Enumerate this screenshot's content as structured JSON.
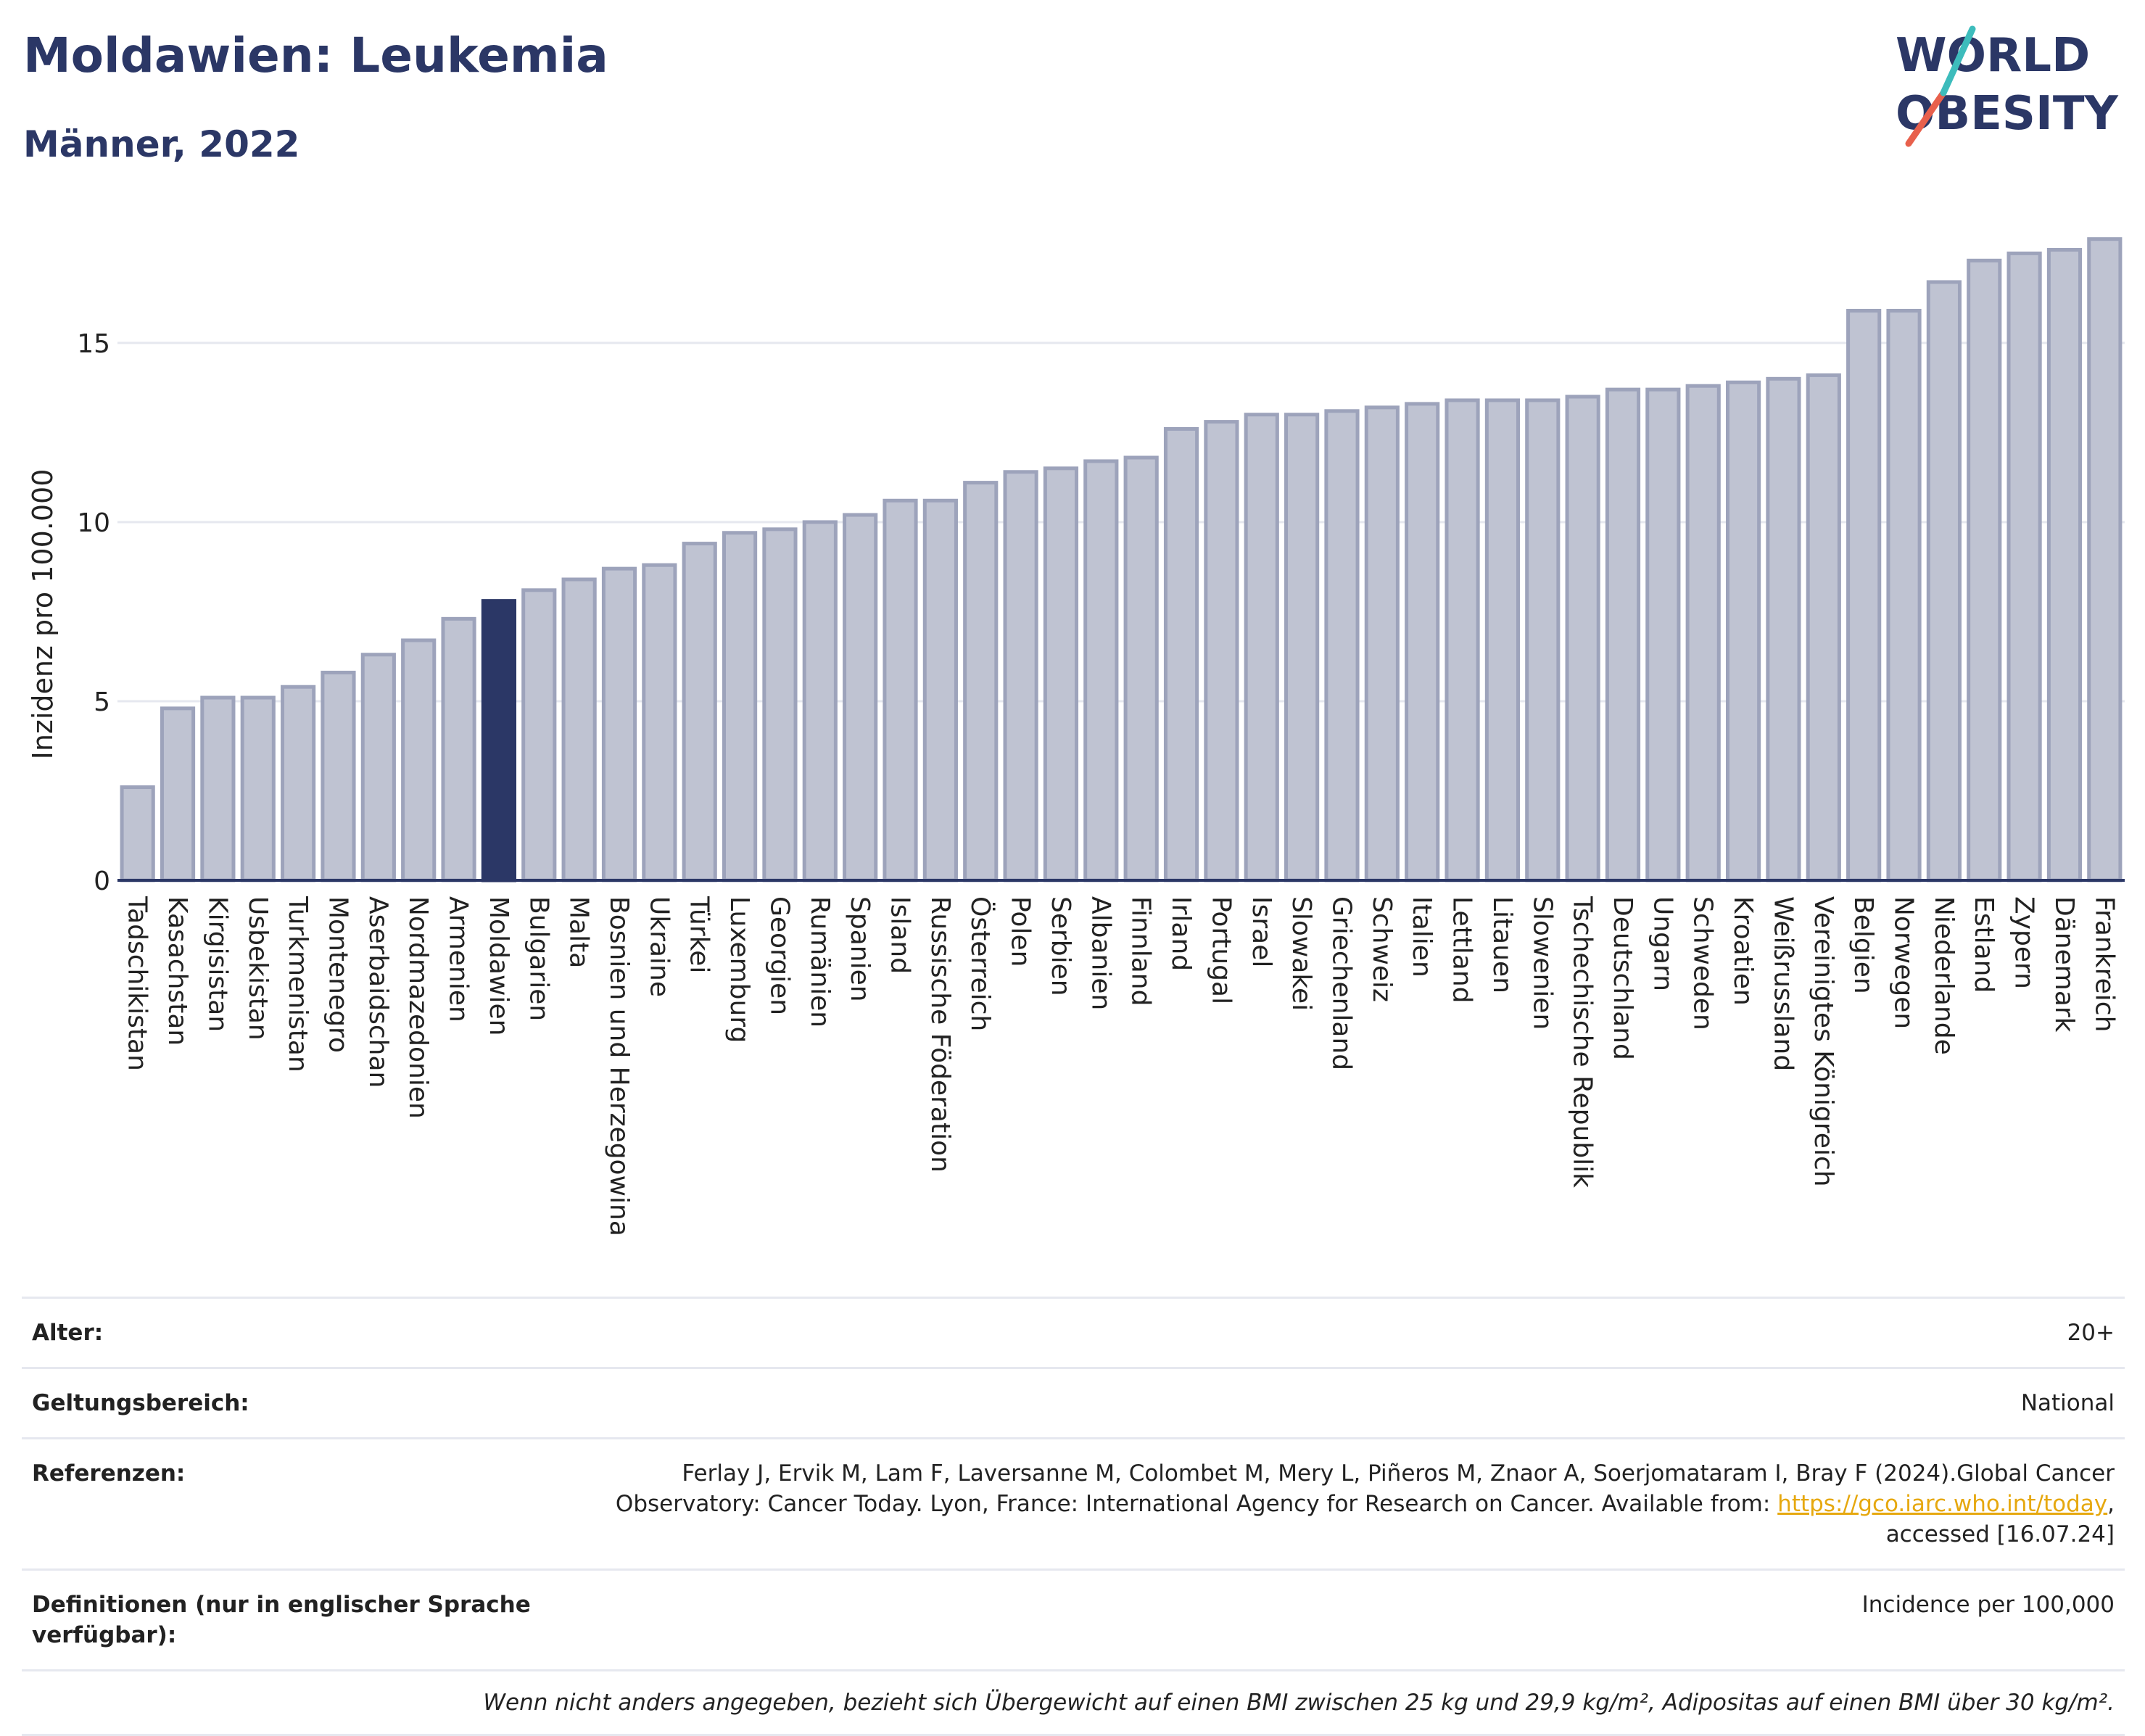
{
  "header": {
    "title": "Moldawien: Leukemia",
    "subtitle": "Männer, 2022"
  },
  "logo": {
    "line1": "WORLD",
    "line2": "OBESITY",
    "text_color": "#2b3766",
    "slash_colors": [
      "#e8604c",
      "#3dbcbc"
    ]
  },
  "colors": {
    "bar_default": "#bfc3d2",
    "bar_default_stroke": "#9da3bb",
    "bar_highlight": "#2b3766",
    "grid": "#e6e8ef",
    "axis": "#2b3766"
  },
  "chart_data": {
    "type": "bar",
    "ylabel": "Inzidenz pro 100.000",
    "ylim": [
      0,
      18.5
    ],
    "yticks": [
      0,
      5,
      10,
      15
    ],
    "highlight": "Moldawien",
    "categories": [
      "Tadschikistan",
      "Kasachstan",
      "Kirgisistan",
      "Usbekistan",
      "Turkmenistan",
      "Montenegro",
      "Aserbaidschan",
      "Nordmazedonien",
      "Armenien",
      "Moldawien",
      "Bulgarien",
      "Malta",
      "Bosnien und Herzegowina",
      "Ukraine",
      "Türkei",
      "Luxemburg",
      "Georgien",
      "Rumänien",
      "Spanien",
      "Island",
      "Russische Föderation",
      "Österreich",
      "Polen",
      "Serbien",
      "Albanien",
      "Finnland",
      "Irland",
      "Portugal",
      "Israel",
      "Slowakei",
      "Griechenland",
      "Schweiz",
      "Italien",
      "Lettland",
      "Litauen",
      "Slowenien",
      "Tschechische Republik",
      "Deutschland",
      "Ungarn",
      "Schweden",
      "Kroatien",
      "Weißrussland",
      "Vereinigtes Königreich",
      "Belgien",
      "Norwegen",
      "Niederlande",
      "Estland",
      "Zypern",
      "Dänemark",
      "Frankreich"
    ],
    "values": [
      2.6,
      4.8,
      5.1,
      5.1,
      5.4,
      5.8,
      6.3,
      6.7,
      7.3,
      7.8,
      8.1,
      8.4,
      8.7,
      8.8,
      9.4,
      9.7,
      9.8,
      10.0,
      10.2,
      10.6,
      10.6,
      11.1,
      11.4,
      11.5,
      11.7,
      11.8,
      12.6,
      12.8,
      13.0,
      13.0,
      13.1,
      13.2,
      13.3,
      13.4,
      13.4,
      13.4,
      13.5,
      13.7,
      13.7,
      13.8,
      13.9,
      14.0,
      14.1,
      15.9,
      15.9,
      16.7,
      17.3,
      17.5,
      17.6,
      17.9
    ]
  },
  "info": {
    "rows": [
      {
        "label": "Alter:",
        "value": "20+"
      },
      {
        "label": "Geltungsbereich:",
        "value": "National"
      },
      {
        "label": "Referenzen:",
        "value_before": "Ferlay J, Ervik M, Lam F, Laversanne M, Colombet M, Mery L, Piñeros M, Znaor A, Soerjomataram I, Bray F (2024).Global Cancer Observatory: Cancer Today. Lyon, France: International Agency for Research on Cancer. Available from: ",
        "link": "https://gco.iarc.who.int/today",
        "value_after": ", accessed [16.07.24]"
      },
      {
        "label": "Definitionen (nur in englischer Sprache verfügbar):",
        "value": "Incidence per 100,000"
      }
    ],
    "footnote": "Wenn nicht anders angegeben, bezieht sich Übergewicht auf einen BMI zwischen 25 kg und 29,9 kg/m², Adipositas auf einen BMI über 30 kg/m²."
  }
}
